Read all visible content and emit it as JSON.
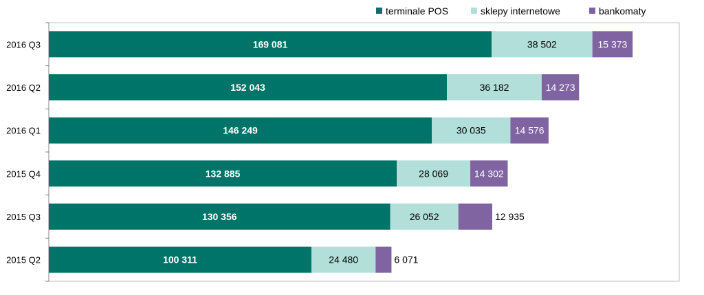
{
  "chart_data": {
    "type": "bar",
    "orientation": "horizontal",
    "stacked": true,
    "categories": [
      "2016 Q3",
      "2016 Q2",
      "2016 Q1",
      "2015 Q4",
      "2015 Q3",
      "2015 Q2"
    ],
    "series": [
      {
        "name": "terminale POS",
        "color": "#007468",
        "values": [
          169081,
          152043,
          146249,
          132885,
          130356,
          100311
        ],
        "labels": [
          "169 081",
          "152 043",
          "146 249",
          "132 885",
          "130 356",
          "100 311"
        ],
        "label_color": "#ffffff",
        "label_bold": true
      },
      {
        "name": "sklepy internetowe",
        "color": "#b2dfd9",
        "values": [
          38502,
          36182,
          30035,
          28069,
          26052,
          24480
        ],
        "labels": [
          "38 502",
          "36 182",
          "30 035",
          "28 069",
          "26 052",
          "24 480"
        ],
        "label_color": "#000000",
        "label_bold": false
      },
      {
        "name": "bankomaty",
        "color": "#8064a2",
        "values": [
          15373,
          14273,
          14576,
          14302,
          12935,
          6071
        ],
        "labels": [
          "15 373",
          "14 273",
          "14 576",
          "14 302",
          "12 935",
          "6 071"
        ],
        "label_color": "#ffffff",
        "label_bold": false
      }
    ],
    "xlim": [
      0,
      240000
    ],
    "legend_position": "top-right",
    "grid": false,
    "title": "",
    "xlabel": "",
    "ylabel": ""
  }
}
